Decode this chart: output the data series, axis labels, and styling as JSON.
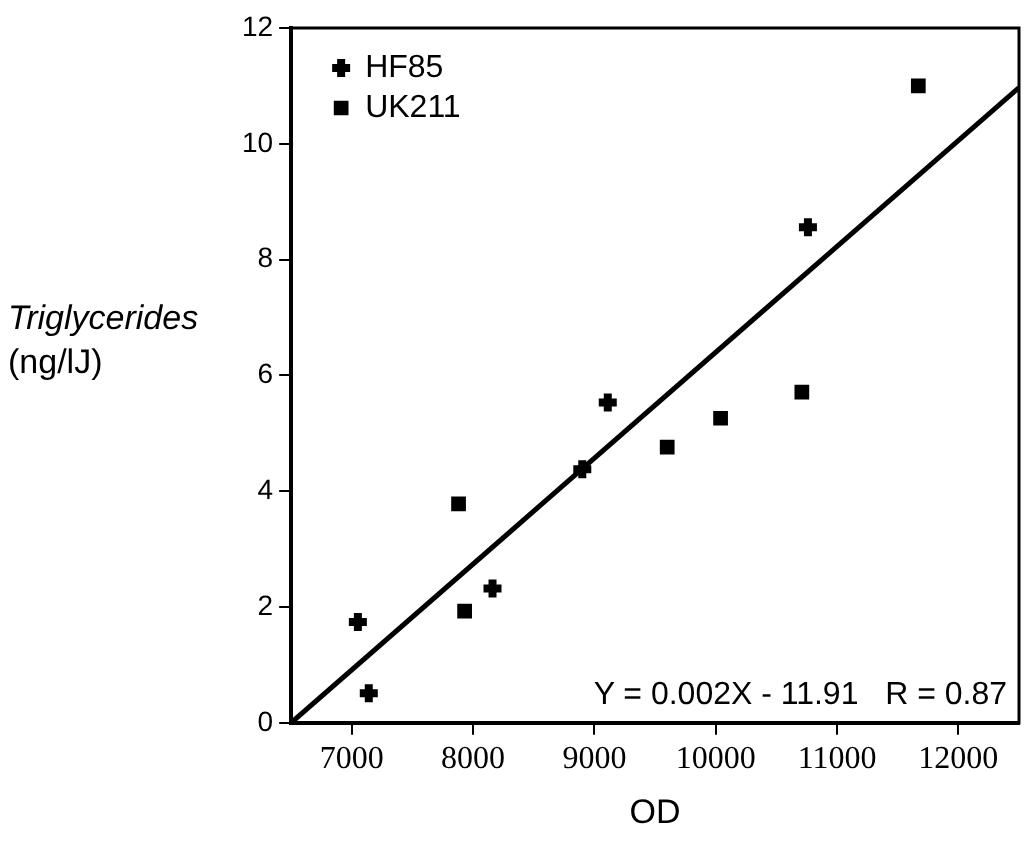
{
  "chart_data": {
    "type": "scatter",
    "xlabel": "OD",
    "ylabel": "Triglycerides\n(ng/lJ)",
    "xlim": [
      6500,
      12500
    ],
    "xticks": [
      7000,
      8000,
      9000,
      10000,
      11000,
      12000
    ],
    "ylim": [
      0,
      12
    ],
    "yticks": [
      0,
      2,
      4,
      6,
      8,
      10,
      12
    ],
    "grid": false,
    "legend": "top left",
    "annotations": [
      "Y = 0.002X - 11.91   R = 0.87"
    ],
    "series": [
      {
        "name": "HF85",
        "color": "#000000",
        "marker": "cross",
        "x": [
          7050,
          7140,
          8160,
          8900,
          9110,
          10760
        ],
        "values": [
          1.74,
          0.51,
          2.32,
          4.38,
          5.53,
          8.56
        ]
      },
      {
        "name": "UK211",
        "color": "#000000",
        "marker": "square",
        "x": [
          7880,
          7930,
          9600,
          10040,
          10710,
          11670
        ],
        "values": [
          3.78,
          1.93,
          4.76,
          5.26,
          5.71,
          11.0
        ]
      },
      {
        "type": "line",
        "color": "#000000",
        "marker": "none",
        "x": [
          6500,
          12500
        ],
        "values": [
          0,
          10.97
        ]
      }
    ]
  }
}
